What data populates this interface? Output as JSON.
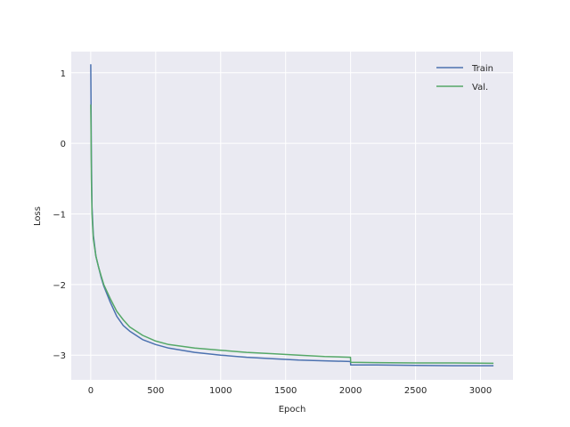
{
  "chart_data": {
    "type": "line",
    "title": "",
    "xlabel": "Epoch",
    "ylabel": "Loss",
    "xlim": [
      -150,
      3250
    ],
    "ylim": [
      -3.35,
      1.3
    ],
    "xticks": [
      0,
      500,
      1000,
      1500,
      2000,
      2500,
      3000
    ],
    "yticks": [
      1,
      0,
      -1,
      -2,
      -3
    ],
    "xtick_labels": [
      "0",
      "500",
      "1000",
      "1500",
      "2000",
      "2500",
      "3000"
    ],
    "ytick_labels": [
      "1",
      "0",
      "−1",
      "−2",
      "−3"
    ],
    "grid": true,
    "legend_position": "top-right",
    "colors": {
      "background": "#EAEAF2",
      "grid": "#FFFFFF"
    },
    "series": [
      {
        "name": "Train",
        "color": "#4C72B0",
        "x": [
          0,
          2,
          5,
          10,
          20,
          40,
          60,
          80,
          100,
          150,
          200,
          250,
          300,
          400,
          500,
          600,
          800,
          1000,
          1200,
          1400,
          1600,
          1800,
          1999,
          2001,
          2200,
          2500,
          2800,
          3100
        ],
        "y": [
          1.12,
          0.6,
          -0.2,
          -0.9,
          -1.3,
          -1.6,
          -1.75,
          -1.9,
          -2.02,
          -2.25,
          -2.45,
          -2.58,
          -2.66,
          -2.78,
          -2.85,
          -2.9,
          -2.96,
          -3.0,
          -3.03,
          -3.05,
          -3.07,
          -3.08,
          -3.09,
          -3.14,
          -3.14,
          -3.145,
          -3.15,
          -3.15
        ]
      },
      {
        "name": "Val.",
        "color": "#55A868",
        "x": [
          0,
          2,
          5,
          10,
          20,
          40,
          60,
          80,
          100,
          150,
          200,
          250,
          300,
          400,
          500,
          600,
          800,
          1000,
          1200,
          1400,
          1600,
          1800,
          1999,
          2001,
          2200,
          2500,
          2800,
          3100
        ],
        "y": [
          0.55,
          0.2,
          -0.5,
          -1.0,
          -1.35,
          -1.6,
          -1.75,
          -1.88,
          -2.0,
          -2.2,
          -2.38,
          -2.5,
          -2.6,
          -2.72,
          -2.8,
          -2.85,
          -2.9,
          -2.93,
          -2.96,
          -2.98,
          -3.0,
          -3.02,
          -3.03,
          -3.1,
          -3.105,
          -3.11,
          -3.11,
          -3.115
        ]
      }
    ]
  }
}
